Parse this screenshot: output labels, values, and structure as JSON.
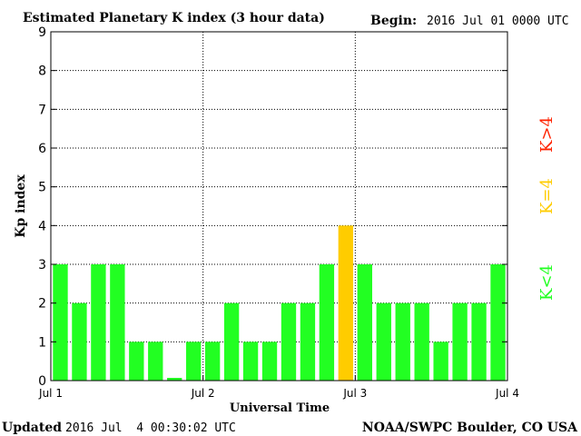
{
  "chart_data": {
    "type": "bar",
    "title": "Estimated Planetary K index (3 hour data)",
    "begin_label": "Begin:",
    "begin_value": "2016 Jul 01 0000 UTC",
    "xlabel": "Universal Time",
    "ylabel": "Kp index",
    "ylim": [
      0,
      9
    ],
    "y_ticks": [
      "0",
      "1",
      "2",
      "3",
      "4",
      "5",
      "6",
      "7",
      "8",
      "9"
    ],
    "x_ticks": [
      "Jul 1",
      "Jul 2",
      "Jul 3",
      "Jul 4"
    ],
    "values": [
      3,
      2,
      3,
      3,
      1,
      1,
      0.07,
      1,
      1,
      2,
      1,
      1,
      2,
      2,
      3,
      4,
      3,
      2,
      2,
      2,
      1,
      2,
      2,
      3
    ],
    "grid": true,
    "colors": {
      "below4": "#22ff22",
      "equal4": "#ffcc00",
      "above4": "#ff2200"
    }
  },
  "legend": {
    "below": "K<4",
    "equal": "K=4",
    "above": "K>4"
  },
  "footer": {
    "updated_label": "Updated",
    "updated_value": "2016 Jul  4 00:30:02 UTC",
    "source": "NOAA/SWPC Boulder, CO USA"
  }
}
